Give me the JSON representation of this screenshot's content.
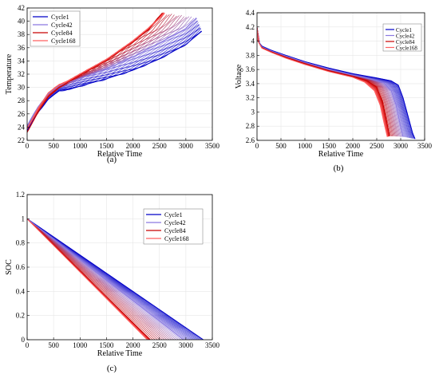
{
  "panels": [
    {
      "label": "(a)",
      "chart_data": {
        "type": "line",
        "title": "",
        "xlabel": "Relative Time",
        "ylabel": "Temperature",
        "xlim": [
          0,
          3500
        ],
        "ylim": [
          22,
          42
        ],
        "xticks": [
          0,
          500,
          1000,
          1500,
          2000,
          2500,
          3000,
          3500
        ],
        "yticks": [
          22,
          24,
          26,
          28,
          30,
          32,
          34,
          36,
          38,
          40,
          42
        ],
        "grid": true,
        "legend_position": "top-left",
        "series": [
          {
            "name": "Cycle1",
            "color": "#0000c8",
            "x": [
              0,
              200,
              400,
              600,
              800,
              1000,
              1500,
              2000,
              2500,
              3000,
              3300
            ],
            "y": [
              23.5,
              26.2,
              28.2,
              29.5,
              29.7,
              30.2,
              31.3,
              32.6,
              34.3,
              36.5,
              38.5
            ]
          },
          {
            "name": "Cycle42",
            "color": "#8a78e0",
            "x": [
              0,
              200,
              400,
              600,
              800,
              1000,
              1500,
              2000,
              2500,
              3000,
              3200
            ],
            "y": [
              24.2,
              27.0,
              29.0,
              30.2,
              30.8,
              31.4,
              32.8,
              34.6,
              36.7,
              38.9,
              40.5
            ]
          },
          {
            "name": "Cycle84",
            "color": "#c80000",
            "x": [
              0,
              200,
              400,
              600,
              800,
              1000,
              1500,
              2000,
              2300,
              2550
            ],
            "y": [
              23.2,
              26.2,
              28.6,
              30.0,
              30.9,
              31.9,
              34.1,
              36.9,
              38.8,
              41.2
            ]
          },
          {
            "name": "Cycle168",
            "color": "#ff6060",
            "x": [
              0,
              200,
              400,
              600,
              800,
              1000,
              1500,
              2000,
              2300,
              2600
            ],
            "y": [
              23.8,
              26.8,
              29.2,
              30.4,
              31.1,
              32.0,
              34.2,
              37.0,
              39.0,
              41.2
            ]
          }
        ]
      }
    },
    {
      "label": "(b)",
      "chart_data": {
        "type": "line",
        "title": "",
        "xlabel": "Relative Time",
        "ylabel": "Voltage",
        "xlim": [
          0,
          3500
        ],
        "ylim": [
          2.6,
          4.4
        ],
        "xticks": [
          0,
          500,
          1000,
          1500,
          2000,
          2500,
          3000,
          3500
        ],
        "yticks": [
          2.6,
          2.8,
          3,
          3.2,
          3.4,
          3.6,
          3.8,
          4,
          4.2,
          4.4
        ],
        "grid": true,
        "legend_position": "top-right",
        "series": [
          {
            "name": "Cycle1",
            "color": "#0000c8",
            "x": [
              0,
              20,
              100,
              300,
              600,
              1000,
              1500,
              2000,
              2500,
              2800,
              2950,
              3050,
              3150,
              3250,
              3300
            ],
            "y": [
              4.2,
              4.0,
              3.93,
              3.87,
              3.8,
              3.71,
              3.62,
              3.54,
              3.48,
              3.44,
              3.38,
              3.2,
              2.95,
              2.7,
              2.62
            ]
          },
          {
            "name": "Cycle42",
            "color": "#8a78e0",
            "x": [
              0,
              20,
              100,
              300,
              600,
              1000,
              1500,
              2000,
              2400,
              2650,
              2800,
              2900,
              2980,
              3050
            ],
            "y": [
              4.2,
              4.0,
              3.92,
              3.86,
              3.79,
              3.7,
              3.6,
              3.52,
              3.46,
              3.41,
              3.3,
              3.1,
              2.85,
              2.65
            ]
          },
          {
            "name": "Cycle84",
            "color": "#c80000",
            "x": [
              0,
              20,
              100,
              300,
              600,
              1000,
              1500,
              2000,
              2300,
              2500,
              2620,
              2700,
              2770
            ],
            "y": [
              4.2,
              4.0,
              3.91,
              3.85,
              3.77,
              3.68,
              3.58,
              3.5,
              3.44,
              3.35,
              3.15,
              2.9,
              2.66
            ]
          },
          {
            "name": "Cycle168",
            "color": "#ff6060",
            "x": [
              0,
              20,
              100,
              300,
              600,
              1000,
              1500,
              2000,
              2250,
              2450,
              2570,
              2650,
              2720
            ],
            "y": [
              4.2,
              4.0,
              3.9,
              3.84,
              3.76,
              3.67,
              3.57,
              3.49,
              3.42,
              3.3,
              3.1,
              2.85,
              2.65
            ]
          }
        ]
      }
    },
    {
      "label": "(c)",
      "chart_data": {
        "type": "line",
        "title": "",
        "xlabel": "Relative Time",
        "ylabel": "SOC",
        "xlim": [
          0,
          3500
        ],
        "ylim": [
          0,
          1.2
        ],
        "xticks": [
          0,
          500,
          1000,
          1500,
          2000,
          2500,
          3000,
          3500
        ],
        "yticks": [
          0,
          0.2,
          0.4,
          0.6,
          0.8,
          1,
          1.2
        ],
        "grid": true,
        "legend_position": "top-right",
        "series": [
          {
            "name": "Cycle1",
            "color": "#0000c8",
            "x": [
              0,
              3330
            ],
            "y": [
              1,
              0
            ]
          },
          {
            "name": "Cycle42",
            "color": "#8a78e0",
            "x": [
              0,
              2950
            ],
            "y": [
              1,
              0
            ]
          },
          {
            "name": "Cycle84",
            "color": "#c80000",
            "x": [
              0,
              2330
            ],
            "y": [
              1,
              0
            ]
          },
          {
            "name": "Cycle168",
            "color": "#ff6060",
            "x": [
              0,
              2270
            ],
            "y": [
              1,
              0
            ]
          }
        ]
      }
    }
  ]
}
